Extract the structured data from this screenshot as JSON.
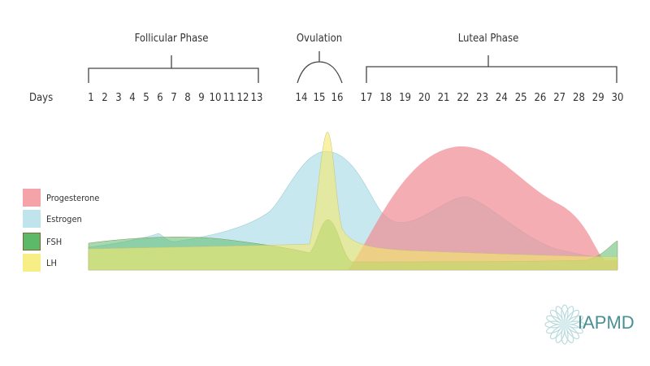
{
  "phases": {
    "follicular": "Follicular Phase",
    "ovulation": "Ovulation",
    "luteal": "Luteal Phase"
  },
  "days_label": "Days",
  "days": [
    "1",
    "2",
    "3",
    "4",
    "5",
    "6",
    "7",
    "8",
    "9",
    "10",
    "11",
    "12",
    "13",
    "14",
    "15",
    "16",
    "17",
    "18",
    "19",
    "20",
    "21",
    "22",
    "23",
    "24",
    "25",
    "26",
    "27",
    "28",
    "29",
    "30"
  ],
  "legend": [
    {
      "label": "Progesterone",
      "color": "#f4a3a8"
    },
    {
      "label": "Estrogen",
      "color": "#bfe4ec"
    },
    {
      "label": "FSH",
      "color": "#5cb96a"
    },
    {
      "label": "LH",
      "color": "#f7ef86"
    }
  ],
  "logo": {
    "text": "IAPMD",
    "color": "#4a8f93"
  }
}
